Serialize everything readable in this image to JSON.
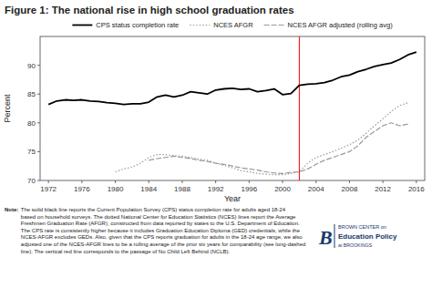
{
  "chart_data": {
    "type": "line",
    "title": "Figure 1: The national rise in high school graduation rates",
    "x_label": "Year",
    "y_label": "Percent",
    "xlim": [
      1971,
      2017
    ],
    "ylim": [
      70,
      95
    ],
    "xticks": [
      1972,
      1976,
      1980,
      1984,
      1988,
      1992,
      1996,
      2000,
      2004,
      2008,
      2012,
      2016
    ],
    "yticks": [
      70,
      75,
      80,
      85,
      90
    ],
    "grid": false,
    "legend": "top",
    "series": [
      {
        "name": "CPS status completion rate",
        "color": "#000000",
        "line_style": "solid",
        "x": [
          1972,
          1973,
          1974,
          1975,
          1976,
          1977,
          1978,
          1979,
          1980,
          1981,
          1982,
          1983,
          1984,
          1985,
          1986,
          1987,
          1988,
          1989,
          1990,
          1991,
          1992,
          1993,
          1994,
          1995,
          1996,
          1997,
          1998,
          1999,
          2000,
          2001,
          2002,
          2003,
          2004,
          2005,
          2006,
          2007,
          2008,
          2009,
          2010,
          2011,
          2012,
          2013,
          2014,
          2015,
          2016
        ],
        "values": [
          83.2,
          83.8,
          84.0,
          83.9,
          84.0,
          83.8,
          83.7,
          83.5,
          83.4,
          83.2,
          83.3,
          83.3,
          83.6,
          84.5,
          84.8,
          84.5,
          84.8,
          85.4,
          85.2,
          85.0,
          85.7,
          85.9,
          86.0,
          85.8,
          85.9,
          85.4,
          85.6,
          85.9,
          84.9,
          85.1,
          86.5,
          86.7,
          86.8,
          87.0,
          87.4,
          88.0,
          88.3,
          88.9,
          89.3,
          89.8,
          90.1,
          90.4,
          91.0,
          91.8,
          92.3
        ]
      },
      {
        "name": "NCES AFGR",
        "color": "#999999",
        "line_style": "dotted",
        "x": [
          1980,
          1981,
          1982,
          1983,
          1984,
          1985,
          1986,
          1987,
          1988,
          1989,
          1990,
          1991,
          1992,
          1993,
          1994,
          1995,
          1996,
          1997,
          1998,
          1999,
          2000,
          2001,
          2002,
          2003,
          2004,
          2005,
          2006,
          2007,
          2008,
          2009,
          2010,
          2011,
          2012,
          2013,
          2014,
          2015
        ],
        "values": [
          71.5,
          72.0,
          72.3,
          73.0,
          74.0,
          74.5,
          74.5,
          74.3,
          74.2,
          74.0,
          73.7,
          73.5,
          73.0,
          72.6,
          72.2,
          71.7,
          71.5,
          71.2,
          71.1,
          71.0,
          71.0,
          71.2,
          71.5,
          73.0,
          74.0,
          74.5,
          75.0,
          75.6,
          76.2,
          77.0,
          78.2,
          79.5,
          80.7,
          82.0,
          83.0,
          83.5
        ]
      },
      {
        "name": "NCES AFGR adjusted (rolling avg)",
        "color": "#999999",
        "line_style": "dashed",
        "x": [
          1984,
          1985,
          1986,
          1987,
          1988,
          1989,
          1990,
          1991,
          1992,
          1993,
          1994,
          1995,
          1996,
          1997,
          1998,
          1999,
          2000,
          2001,
          2002,
          2003,
          2004,
          2005,
          2006,
          2007,
          2008,
          2009,
          2010,
          2011,
          2012,
          2013,
          2014,
          2015
        ],
        "values": [
          73.5,
          73.8,
          74.0,
          74.2,
          74.0,
          73.8,
          73.5,
          73.3,
          73.0,
          72.8,
          72.5,
          72.2,
          72.0,
          71.8,
          71.5,
          71.3,
          71.2,
          71.4,
          71.5,
          72.0,
          72.8,
          73.5,
          74.0,
          74.5,
          75.0,
          76.0,
          77.5,
          78.5,
          79.5,
          80.0,
          79.5,
          79.8
        ]
      }
    ],
    "vertical_lines": [
      {
        "x": 2002,
        "color": "red"
      }
    ],
    "note": {
      "label": "Note:",
      "text": [
        "The solid black line reports the Current Population Survey (CPS) status completion rate for adults aged 18-24",
        "based on household surveys. The dotted National Center for Education Statistics (NCES) lines report the Average",
        "Freshmen Graduation Rate (AFGR), constructed from data reported by states to the U.S. Department of Education.",
        "The CPS rate is consistently higher because it includes Graduation Education Diploma (GED) credentials, while the",
        "NCES-AFGR excludes GEDs. Also, given that the CPS reports graduation for adults in the 18-24 age range, we also",
        "adjusted one of the NCES-AFGR lines to be a rolling average of the prior six years for comparability (see long-dashed",
        "line). The vertical red line corresponds to the passage of No Child Left Behind (NCLB)."
      ]
    },
    "logo": {
      "mark": "B",
      "lines": [
        "BROWN CENTER on",
        "Education Policy",
        "at BROOKINGS"
      ],
      "color": "#1a3a6b"
    }
  }
}
